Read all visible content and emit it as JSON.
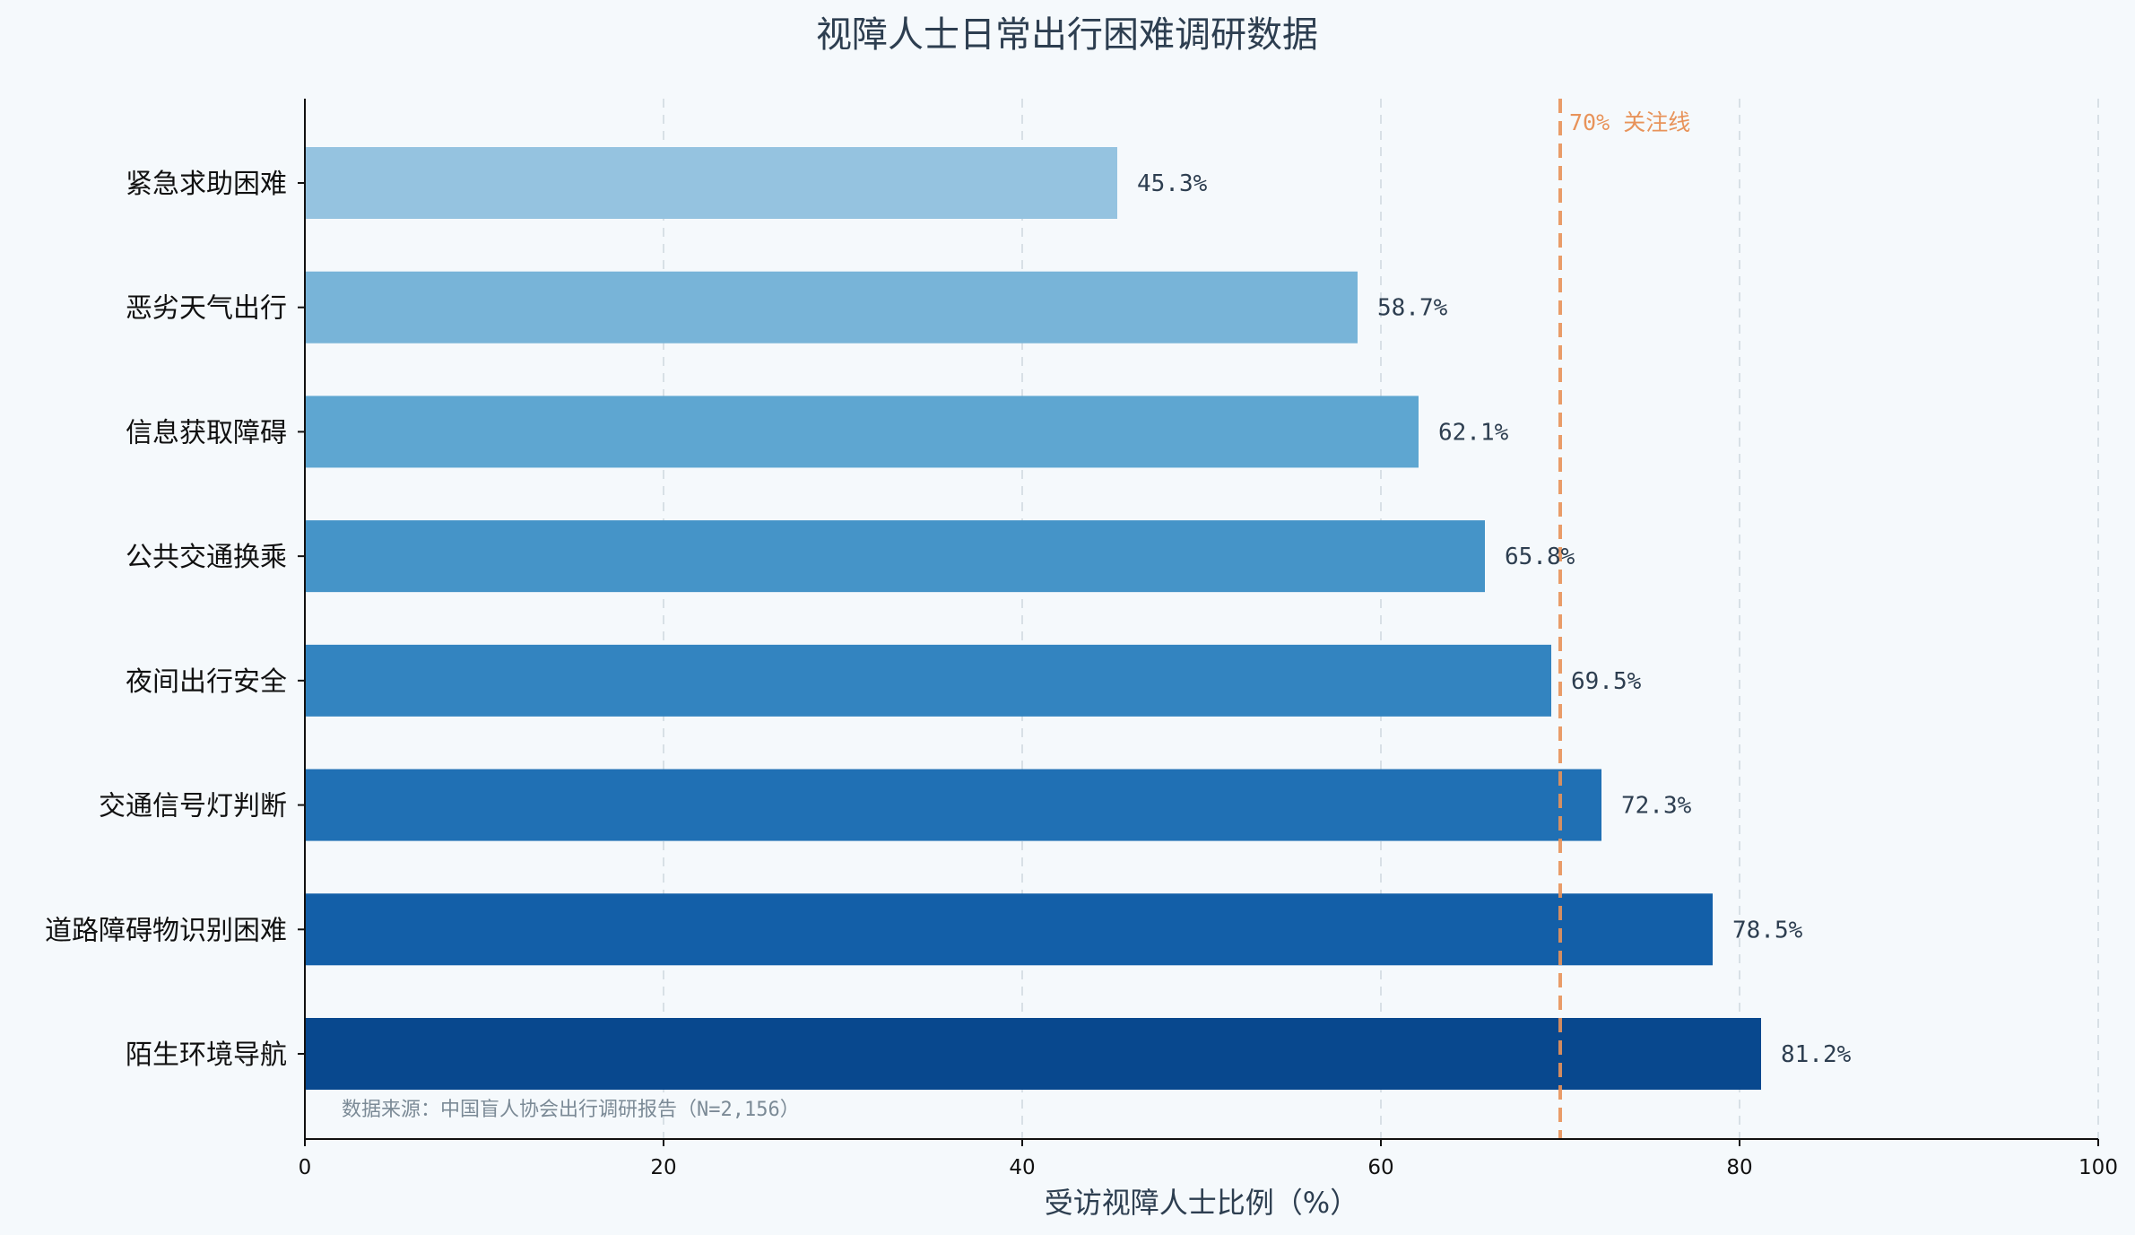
{
  "chart_data": {
    "type": "bar",
    "orientation": "horizontal",
    "title": "视障人士日常出行困难调研数据",
    "xlabel": "受访视障人士比例（%）",
    "ylabel": "",
    "xlim": [
      0,
      100
    ],
    "x_ticks": [
      0,
      20,
      40,
      60,
      80,
      100
    ],
    "grid": "vertical-dashed",
    "categories": [
      "紧急求助困难",
      "恶劣天气出行",
      "信息获取障碍",
      "公共交通换乘",
      "夜间出行安全",
      "交通信号灯判断",
      "道路障碍物识别困难",
      "陌生环境导航"
    ],
    "values": [
      45.3,
      58.7,
      62.1,
      65.8,
      69.5,
      72.3,
      78.5,
      81.2
    ],
    "value_labels": [
      "45.3%",
      "58.7%",
      "62.1%",
      "65.8%",
      "69.5%",
      "72.3%",
      "78.5%",
      "81.2%"
    ],
    "bar_colors": [
      "#95c3e0",
      "#78b4d8",
      "#5ea6d1",
      "#4594c8",
      "#3384c0",
      "#2070b4",
      "#135fa8",
      "#08488e"
    ],
    "reference_line": {
      "value": 70,
      "label": "70% 关注线",
      "color": "#e8935a",
      "style": "dashed"
    },
    "annotation": "数据来源：中国盲人协会出行调研报告（N=2,156）"
  }
}
